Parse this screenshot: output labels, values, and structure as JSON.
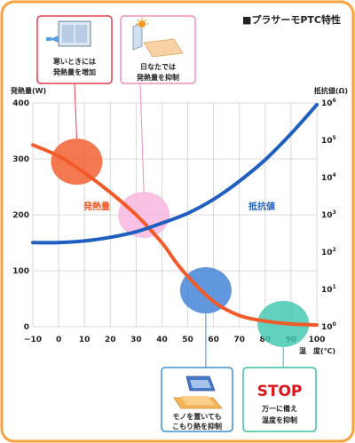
{
  "colors": {
    "frame": "#f7a23c",
    "heat_curve": "#f25a2a",
    "resist_curve": "#1f5fbf",
    "grid": "#cfcfcf",
    "box_red": "#e63c50",
    "box_pink": "#f08fbf",
    "box_blue": "#3d8fd6",
    "box_teal": "#3bbfa8",
    "stop_red": "#e0141e"
  },
  "header": {
    "title": "■プラサーモPTC特性"
  },
  "callouts": {
    "cold": {
      "icon": "window-icon",
      "line1": "寒いときには",
      "line2": "発熱量を増加"
    },
    "sunny": {
      "icon": "sun-window-icon",
      "line1": "日なたでは",
      "line2": "発熱量を抑制"
    },
    "object": {
      "icon": "object-on-mat-icon",
      "line1": "モノを置いても",
      "line2": "こもり熱を抑制"
    },
    "overtemp": {
      "stop": "STOP",
      "line1": "万一に備え",
      "line2": "温度を抑制"
    }
  },
  "chart_data": {
    "type": "line",
    "xlabel": "温　度(℃)",
    "x_ticks": [
      "−10",
      "0",
      "10",
      "20",
      "30",
      "40",
      "50",
      "60",
      "70",
      "80",
      "90",
      "100"
    ],
    "xlim": [
      -10,
      100
    ],
    "y_left": {
      "label": "発熱量(W)",
      "ticks": [
        "0",
        "100",
        "200",
        "300",
        "400"
      ],
      "lim": [
        0,
        400
      ]
    },
    "y_right": {
      "label": "抵抗値(Ω)",
      "scale": "log",
      "tick_exponents": [
        0,
        1,
        2,
        3,
        4,
        5,
        6
      ],
      "lim": [
        1,
        1000000
      ]
    },
    "grid": true,
    "series": [
      {
        "name": "発熱量",
        "axis": "left",
        "color": "#f25a2a",
        "x": [
          -10,
          0,
          10,
          20,
          30,
          40,
          45,
          50,
          60,
          70,
          80,
          90,
          100
        ],
        "y": [
          325,
          305,
          275,
          240,
          200,
          150,
          118,
          90,
          45,
          20,
          10,
          5,
          3
        ]
      },
      {
        "name": "抵抗値",
        "axis": "right",
        "color": "#1f5fbf",
        "x": [
          -10,
          0,
          10,
          20,
          30,
          40,
          50,
          60,
          70,
          80,
          90,
          100
        ],
        "y": [
          180,
          180,
          200,
          250,
          350,
          600,
          1100,
          2600,
          8000,
          30000,
          150000,
          900000
        ]
      }
    ],
    "highlight_markers": [
      {
        "color": "#f25a2a",
        "x": 7,
        "y": 295
      },
      {
        "color": "#f8b4de",
        "x": 33,
        "y": 200
      },
      {
        "color": "#3d80d6",
        "x": 57,
        "y": 65
      },
      {
        "color": "#3fc7b0",
        "x": 87,
        "y": 5
      }
    ]
  }
}
